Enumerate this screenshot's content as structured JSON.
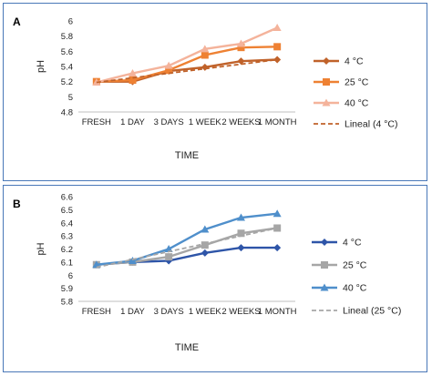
{
  "chart_data": [
    {
      "type": "line",
      "panel_label": "A",
      "categories": [
        "FRESH",
        "1 DAY",
        "3 DAYS",
        "1 WEEK",
        "2 WEEKS",
        "1 MONTH"
      ],
      "xlabel": "TIME",
      "ylabel": "pH",
      "ylim": [
        4.8,
        6.0
      ],
      "yticks": [
        "4.8",
        "5",
        "5.2",
        "5.4",
        "5.6",
        "5.8",
        "6"
      ],
      "grid": false,
      "legend_position": "right",
      "series": [
        {
          "name": "4 °C",
          "values": [
            5.2,
            5.2,
            5.34,
            5.39,
            5.47,
            5.49
          ],
          "color": "#c0622a",
          "marker": "diamond",
          "dashed": false
        },
        {
          "name": "25 °C",
          "values": [
            5.2,
            5.22,
            5.35,
            5.55,
            5.65,
            5.66
          ],
          "color": "#ee8133",
          "marker": "square",
          "dashed": false
        },
        {
          "name": "40 °C",
          "values": [
            5.19,
            5.31,
            5.41,
            5.63,
            5.7,
            5.91
          ],
          "color": "#f4b39b",
          "marker": "triangle",
          "dashed": false
        },
        {
          "name": "Lineal (4 °C)",
          "values": [
            5.19,
            5.25,
            5.31,
            5.37,
            5.43,
            5.49
          ],
          "color": "#c0622a",
          "marker": "none",
          "dashed": true
        }
      ]
    },
    {
      "type": "line",
      "panel_label": "B",
      "categories": [
        "FRESH",
        "1 DAY",
        "3 DAYS",
        "1 WEEK",
        "2 WEEKS",
        "1 MONTH"
      ],
      "xlabel": "TIME",
      "ylabel": "pH",
      "ylim": [
        5.8,
        6.6
      ],
      "yticks": [
        "5.8",
        "5.9",
        "6",
        "6.1",
        "6.2",
        "6.3",
        "6.4",
        "6.5",
        "6.6"
      ],
      "grid": false,
      "legend_position": "right",
      "series": [
        {
          "name": "4 °C",
          "values": [
            6.08,
            6.1,
            6.11,
            6.17,
            6.21,
            6.21
          ],
          "color": "#2e55a8",
          "marker": "diamond",
          "dashed": false
        },
        {
          "name": "25 °C",
          "values": [
            6.08,
            6.1,
            6.14,
            6.23,
            6.32,
            6.36
          ],
          "color": "#a6a6a6",
          "marker": "square",
          "dashed": false
        },
        {
          "name": "40 °C",
          "values": [
            6.08,
            6.11,
            6.2,
            6.35,
            6.44,
            6.47
          ],
          "color": "#4f8fcb",
          "marker": "triangle",
          "dashed": false
        },
        {
          "name": "Lineal (25 °C)",
          "values": [
            6.06,
            6.12,
            6.18,
            6.24,
            6.3,
            6.36
          ],
          "color": "#a6a6a6",
          "marker": "none",
          "dashed": true
        }
      ]
    }
  ]
}
